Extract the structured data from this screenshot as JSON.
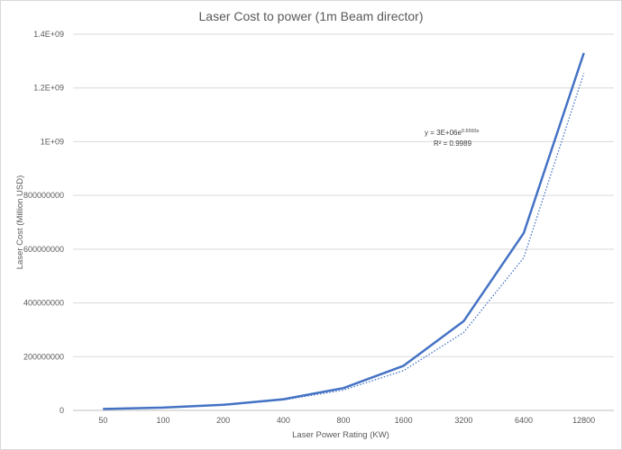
{
  "chart_data": {
    "type": "line",
    "title": "Laser Cost to power (1m Beam director)",
    "xlabel": "Laser Power  Rating (KW)",
    "ylabel": "Laser Cost (Million USD)",
    "categories": [
      "50",
      "100",
      "200",
      "400",
      "800",
      "1600",
      "3200",
      "6400",
      "12800"
    ],
    "series": [
      {
        "values": [
          5200000,
          10400000,
          20800000,
          41600000,
          83000000,
          166000000,
          332000000,
          660000000,
          1330000000
        ],
        "color": "#4472c4",
        "style": "solid"
      },
      {
        "values": [
          5200000,
          10100000,
          19800000,
          38700000,
          75700000,
          148000000,
          290000000,
          568000000,
          1255000000
        ],
        "color": "#4472c4",
        "style": "dotted",
        "kind": "exponential-trendline"
      }
    ],
    "ylim": [
      0,
      1400000000
    ],
    "yticks": [
      {
        "value": 0,
        "label": "0"
      },
      {
        "value": 200000000,
        "label": "200000000"
      },
      {
        "value": 400000000,
        "label": "400000000"
      },
      {
        "value": 600000000,
        "label": "600000000"
      },
      {
        "value": 800000000,
        "label": "800000000"
      },
      {
        "value": 1000000000,
        "label": "1E+09"
      },
      {
        "value": 1200000000,
        "label": "1.2E+09"
      },
      {
        "value": 1400000000,
        "label": "1.4E+09"
      }
    ],
    "grid": true,
    "legend": "none",
    "trendline_label": {
      "equation_prefix": "y = 3E+06e",
      "exponent": "0.6593x",
      "r_squared": "R² = 0.9989"
    }
  }
}
